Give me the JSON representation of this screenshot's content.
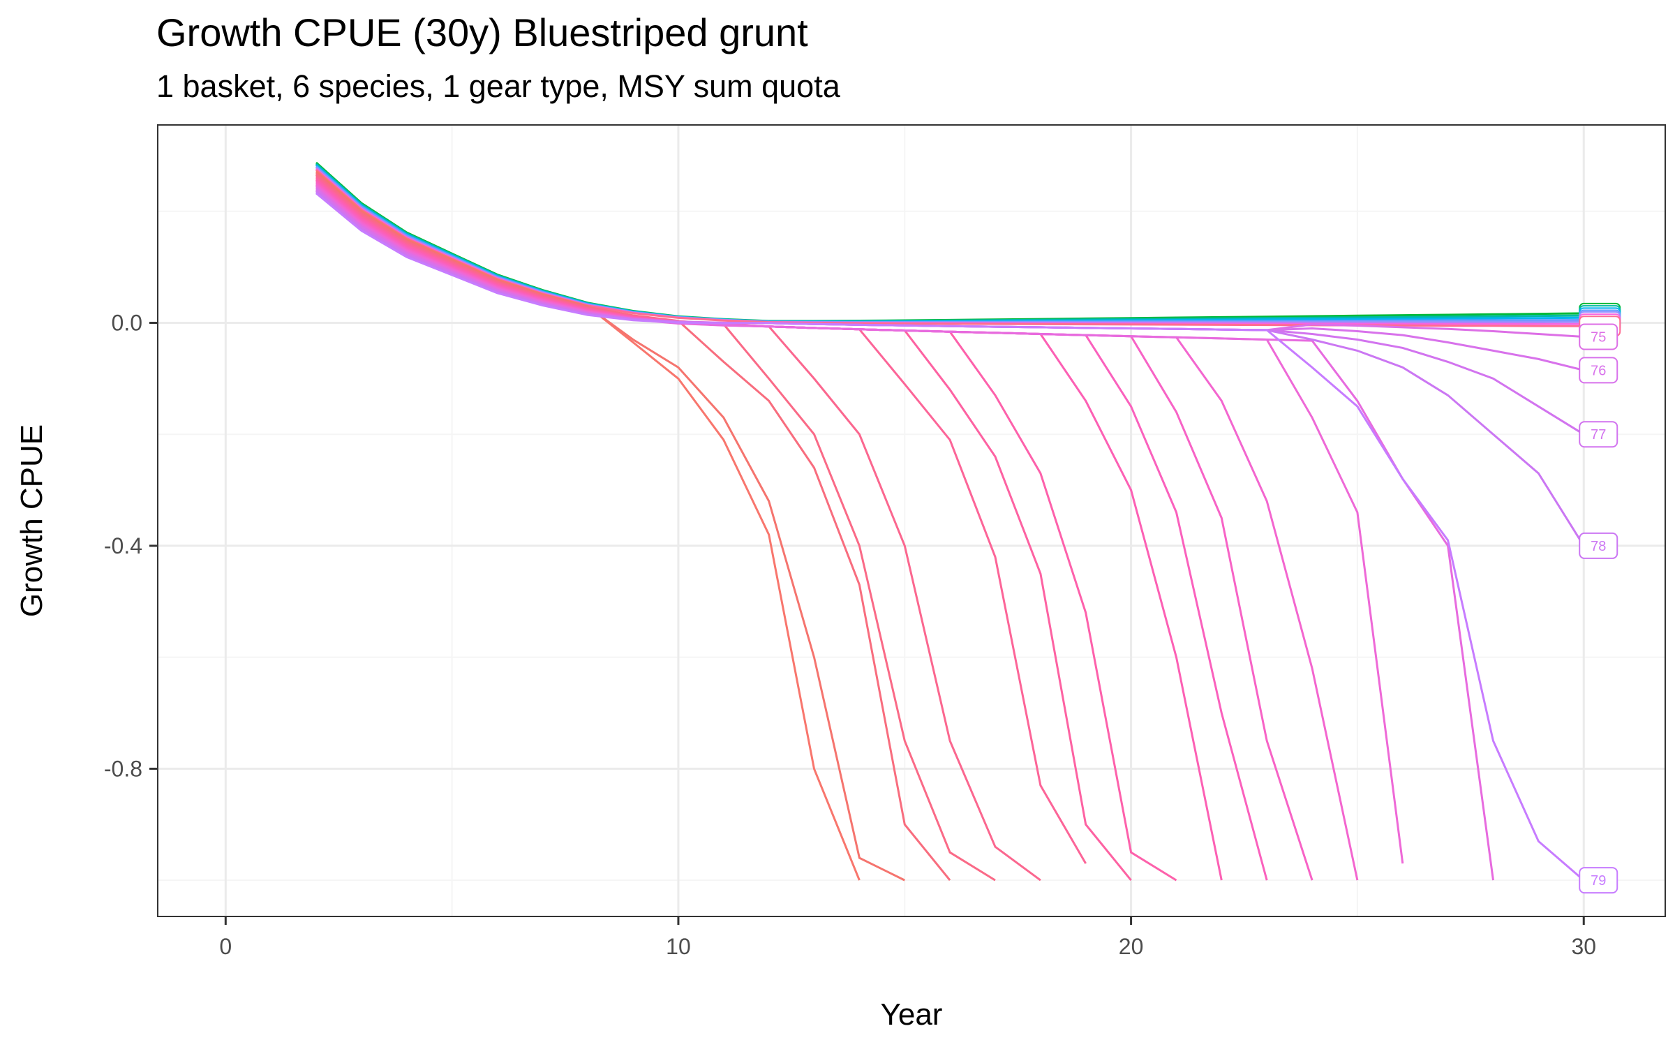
{
  "chart_data": {
    "type": "line",
    "title": "Growth CPUE (30y) Bluestriped grunt",
    "subtitle": "1 basket, 6 species, 1 gear type, MSY sum quota",
    "xlabel": "Year",
    "ylabel": "Growth CPUE",
    "xlim": [
      -1.5,
      31.8
    ],
    "ylim": [
      -1.065,
      0.355
    ],
    "x_ticks": [
      0,
      10,
      20,
      30
    ],
    "x_tick_labels": [
      "0",
      "10",
      "20",
      "30"
    ],
    "y_ticks": [
      0.0,
      -0.4,
      -0.8
    ],
    "y_tick_labels": [
      "0.0",
      "-0.4",
      "-0.8"
    ],
    "y_minor_ticks": [
      0.2,
      -0.2,
      -0.6,
      -1.0
    ],
    "x_minor_ticks": [
      5,
      15,
      25
    ],
    "grid": true,
    "legend": "none",
    "start_values": {
      "x_start": 2,
      "top": 0.29,
      "bottom": 0.235
    },
    "early_curve": [
      {
        "x": 2,
        "y": 0.26
      },
      {
        "x": 3,
        "y": 0.19
      },
      {
        "x": 4,
        "y": 0.14
      },
      {
        "x": 5,
        "y": 0.105
      },
      {
        "x": 6,
        "y": 0.07
      },
      {
        "x": 7,
        "y": 0.045
      },
      {
        "x": 8,
        "y": 0.025
      },
      {
        "x": 9,
        "y": 0.013
      },
      {
        "x": 10,
        "y": 0.006
      }
    ],
    "collapse_series": [
      {
        "end": 14,
        "crash": [
          -0.035,
          -0.1,
          -0.21,
          -0.38,
          -0.8,
          -1.0
        ],
        "color_index": 0
      },
      {
        "end": 15,
        "crash": [
          -0.03,
          -0.08,
          -0.17,
          -0.32,
          -0.6,
          -0.96,
          -1.0
        ],
        "color_index": 1
      },
      {
        "end": 16,
        "crash": [
          -0.07,
          -0.14,
          -0.26,
          -0.47,
          -0.9,
          -1.0
        ],
        "color_index": 2
      },
      {
        "end": 17,
        "crash": [
          -0.1,
          -0.2,
          -0.4,
          -0.75,
          -0.95,
          -1.0
        ],
        "color_index": 3
      },
      {
        "end": 18,
        "crash": [
          -0.1,
          -0.2,
          -0.4,
          -0.75,
          -0.94,
          -1.0
        ],
        "color_index": 4
      },
      {
        "end": 19,
        "crash": [
          -0.11,
          -0.21,
          -0.42,
          -0.83,
          -0.97
        ],
        "color_index": 5
      },
      {
        "end": 20,
        "crash": [
          -0.12,
          -0.24,
          -0.45,
          -0.9,
          -1.0
        ],
        "color_index": 6
      },
      {
        "end": 21,
        "crash": [
          -0.13,
          -0.27,
          -0.52,
          -0.95,
          -1.0
        ],
        "color_index": 7
      },
      {
        "end": 22,
        "crash": [
          -0.14,
          -0.3,
          -0.6,
          -1.0
        ],
        "color_index": 8
      },
      {
        "end": 23,
        "crash": [
          -0.15,
          -0.34,
          -0.7,
          -1.0
        ],
        "color_index": 9
      },
      {
        "end": 24,
        "crash": [
          -0.16,
          -0.35,
          -0.75,
          -1.0
        ],
        "color_index": 10
      },
      {
        "end": 25,
        "crash": [
          -0.14,
          -0.32,
          -0.62,
          -1.0
        ],
        "color_index": 11
      },
      {
        "end": 26,
        "crash": [
          -0.17,
          -0.34,
          -0.97
        ],
        "color_index": 12
      },
      {
        "end": 28,
        "crash": [
          -0.14,
          -0.28,
          -0.4,
          -1.0
        ],
        "color_index": 13
      }
    ],
    "labeled_series": [
      {
        "label": "75",
        "end_value": -0.025,
        "color_index": 14
      },
      {
        "label": "76",
        "end_value": -0.085,
        "color_index": 15
      },
      {
        "label": "77",
        "end_value": -0.2,
        "color_index": 16
      },
      {
        "label": "78",
        "end_value": -0.4,
        "color_index": 17
      },
      {
        "label": "79",
        "end_value": -1.0,
        "color_index": 18
      }
    ],
    "flat_series_end_values": [
      0.017,
      0.013,
      0.009,
      0.005,
      0.002,
      -0.002,
      -0.006
    ],
    "colors": {
      "palette": [
        "#f8766d",
        "#f5746e",
        "#f86d7e",
        "#fa6a87",
        "#fb678f",
        "#fc6598",
        "#fd62a2",
        "#fd61ab",
        "#fc60b4",
        "#fa61bd",
        "#f763c6",
        "#f366cf",
        "#ee69d7",
        "#e76bdf",
        "#dd6fe6",
        "#d872eb",
        "#d274ef",
        "#cb77f3",
        "#c77cff"
      ],
      "early_band": [
        "#00ba38",
        "#00b9a6",
        "#00b4ef",
        "#619cff",
        "#8f91ff",
        "#f564e3",
        "#ff6c91"
      ],
      "panel_border": "#333333",
      "grid_major": "#ebebeb",
      "grid_minor": "#f5f5f5"
    }
  }
}
